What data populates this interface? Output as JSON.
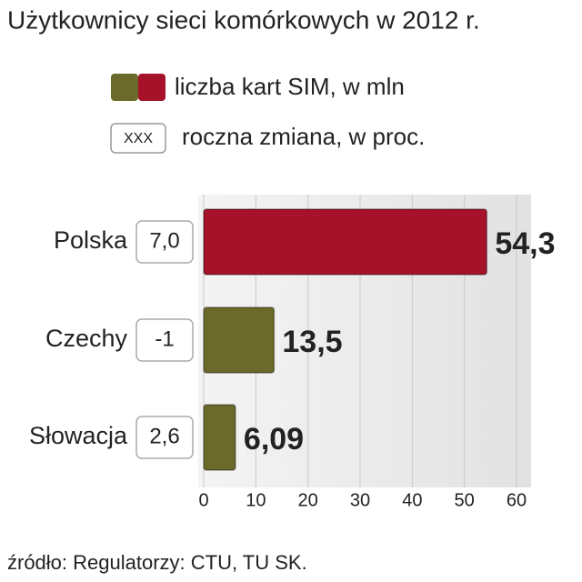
{
  "chart_data": {
    "type": "bar",
    "orientation": "horizontal",
    "title": "Użytkownicy sieci komórkowych w 2012 r.",
    "legend": [
      {
        "label": "liczba kart SIM, w mln",
        "colors": [
          "#6b6a2a",
          "#a5122a"
        ]
      },
      {
        "swatch_text": "XXX",
        "label": "roczna zmiana, w proc."
      }
    ],
    "categories": [
      "Polska",
      "Czechy",
      "Słowacja"
    ],
    "values": [
      54.3,
      13.5,
      6.09
    ],
    "value_labels": [
      "54,3",
      "13,5",
      "6,09"
    ],
    "colors": [
      "#a5122a",
      "#6b6a2a",
      "#6b6a2a"
    ],
    "change_labels": [
      "7,0",
      "-1",
      "2,6"
    ],
    "xlim": [
      0,
      60
    ],
    "xticks": [
      0,
      10,
      20,
      30,
      40,
      50,
      60
    ],
    "grid": true,
    "source": "źródło: Regulatorzy: CTU, TU SK."
  }
}
